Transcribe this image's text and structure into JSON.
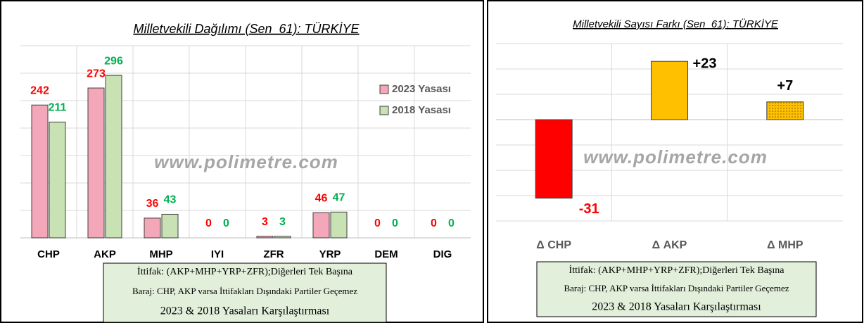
{
  "chart_data": [
    {
      "type": "bar",
      "title": "Milletvekili Dağılımı (Sen_61): TÜRKİYE",
      "categories": [
        "CHP",
        "AKP",
        "MHP",
        "IYI",
        "ZFR",
        "YRP",
        "DEM",
        "DIG"
      ],
      "series": [
        {
          "name": "2023 Yasası",
          "color": "#f4a7b9",
          "label_color": "#ff0000",
          "values": [
            242,
            273,
            36,
            0,
            3,
            46,
            0,
            0
          ]
        },
        {
          "name": "2018 Yasası",
          "color": "#c9e2b3",
          "label_color": "#00b050",
          "values": [
            211,
            296,
            43,
            0,
            3,
            47,
            0,
            0
          ]
        }
      ],
      "ylim": [
        0,
        350
      ],
      "yticks": [
        0,
        50,
        100,
        150,
        200,
        250,
        300,
        350
      ],
      "grid": true,
      "legend": "upper right",
      "watermark": "www.polimetre.com",
      "notes": [
        "İttifak: (AKP+MHP+YRP+ZFR);Diğerleri Tek Başına",
        "Baraj: CHP, AKP varsa İttifakları Dışındaki Partiler Geçemez",
        "2023 & 2018 Yasaları Karşılaştırması"
      ]
    },
    {
      "type": "bar",
      "title": "Milletvekili Sayısı Farkı (Sen_61): TÜRKİYE",
      "categories": [
        "Δ CHP",
        "Δ AKP",
        "Δ MHP"
      ],
      "values": [
        -31,
        23,
        7
      ],
      "value_labels": [
        "-31",
        "+23",
        "+7"
      ],
      "colors": [
        "#ff0000",
        "#ffc000",
        "#ffc000"
      ],
      "patterns": [
        "solid",
        "solid",
        "dots"
      ],
      "ylim": [
        -40,
        30
      ],
      "yticks": [
        -40,
        -30,
        -20,
        -10,
        0,
        10,
        20,
        30
      ],
      "grid": true,
      "watermark": "www.polimetre.com",
      "notes": [
        "İttifak: (AKP+MHP+YRP+ZFR);Diğerleri Tek Başına",
        "Baraj: CHP, AKP varsa İttifakları Dışındaki Partiler Geçemez",
        "2023 & 2018 Yasaları Karşılaştırması"
      ]
    }
  ]
}
